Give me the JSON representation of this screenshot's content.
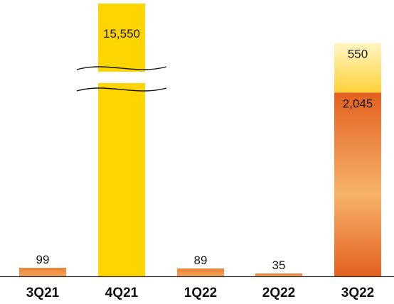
{
  "chart_data": {
    "type": "bar",
    "stacked": true,
    "broken_axis": true,
    "categories": [
      "3Q21",
      "4Q21",
      "1Q22",
      "2Q22",
      "3Q22"
    ],
    "series": [
      {
        "values": [
          99,
          0,
          89,
          35,
          2045
        ],
        "color": "orange-gradient"
      },
      {
        "values": [
          0,
          15550,
          0,
          0,
          550
        ],
        "color": "yellow"
      }
    ],
    "data_labels": [
      "99",
      "15,550",
      "89",
      "35",
      "2,045",
      "550"
    ],
    "title": "",
    "xlabel": "",
    "ylabel": "",
    "grid": false,
    "legend": false
  },
  "colors": {
    "orange_dark": "#E2601F",
    "orange_light": "#F6B36B",
    "yellow": "#FFD500",
    "yellow_light": "#FFF6C2",
    "axis": "#333333"
  }
}
